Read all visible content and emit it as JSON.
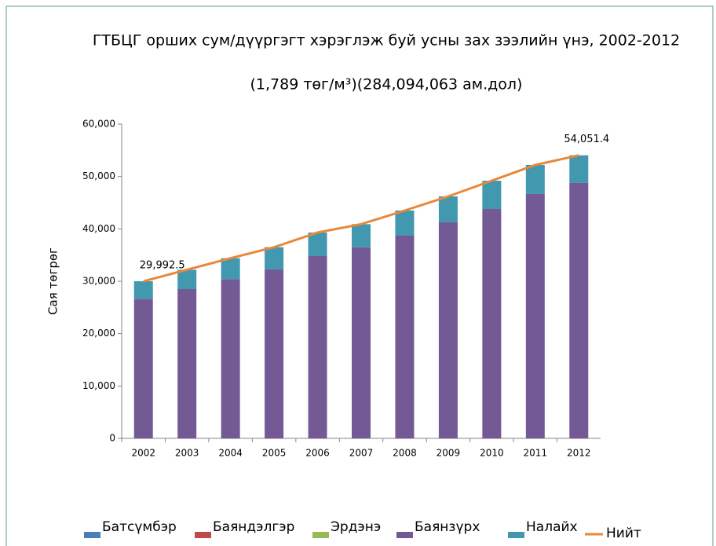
{
  "chart_data": {
    "type": "bar",
    "title": "ГТБЦГ орших сум/дүүргэгт хэрэглэж буй усны зах зээлийн үнэ, 2002-2012",
    "subtitle": "(1,789 төг/м³)(284,094,063 ам.дол)",
    "y_label": "Сая төгрөг",
    "categories": [
      "2002",
      "2003",
      "2004",
      "2005",
      "2006",
      "2007",
      "2008",
      "2009",
      "2010",
      "2011",
      "2012"
    ],
    "series": [
      {
        "name": "Батсүмбэр",
        "color": "#4a7ebb",
        "values": [
          0,
          0,
          0,
          0,
          0,
          0,
          0,
          0,
          0,
          0,
          0
        ]
      },
      {
        "name": "Баяндэлгэр",
        "color": "#be4b48",
        "values": [
          0,
          0,
          0,
          0,
          0,
          0,
          0,
          0,
          0,
          0,
          0
        ]
      },
      {
        "name": "Эрдэнэ",
        "color": "#98b954",
        "values": [
          0,
          0,
          0,
          0,
          0,
          0,
          0,
          0,
          0,
          0,
          0
        ]
      },
      {
        "name": "Баянзүрх",
        "color": "#745a94",
        "values": [
          26600,
          28500,
          30400,
          32300,
          34800,
          36500,
          38700,
          41300,
          43800,
          46700,
          48800
        ]
      },
      {
        "name": "Налайх",
        "color": "#4198af",
        "values": [
          3400,
          3700,
          4000,
          4200,
          4500,
          4400,
          4800,
          4900,
          5400,
          5500,
          5250
        ]
      },
      {
        "name": "Нийт",
        "type": "line",
        "color": "#e8883a",
        "values": [
          29992.5,
          32200,
          34400,
          36500,
          39300,
          40900,
          43500,
          46200,
          49200,
          52200,
          54051.4
        ],
        "value_labels": [
          "29,992.5",
          null,
          null,
          null,
          null,
          null,
          null,
          null,
          null,
          null,
          "54,051.4"
        ]
      }
    ],
    "ylim": [
      0,
      60000
    ],
    "yticks": [
      0,
      {
        "value": 10000,
        "label": "10,000"
      },
      {
        "value": 20000,
        "label": "20,000"
      },
      {
        "value": 30000,
        "label": "30,000"
      },
      {
        "value": 40000,
        "label": "40,000"
      },
      {
        "value": 50000,
        "label": "50,000"
      },
      {
        "value": 60000,
        "label": "60,000"
      }
    ],
    "grid": false,
    "legend": "bottom"
  }
}
